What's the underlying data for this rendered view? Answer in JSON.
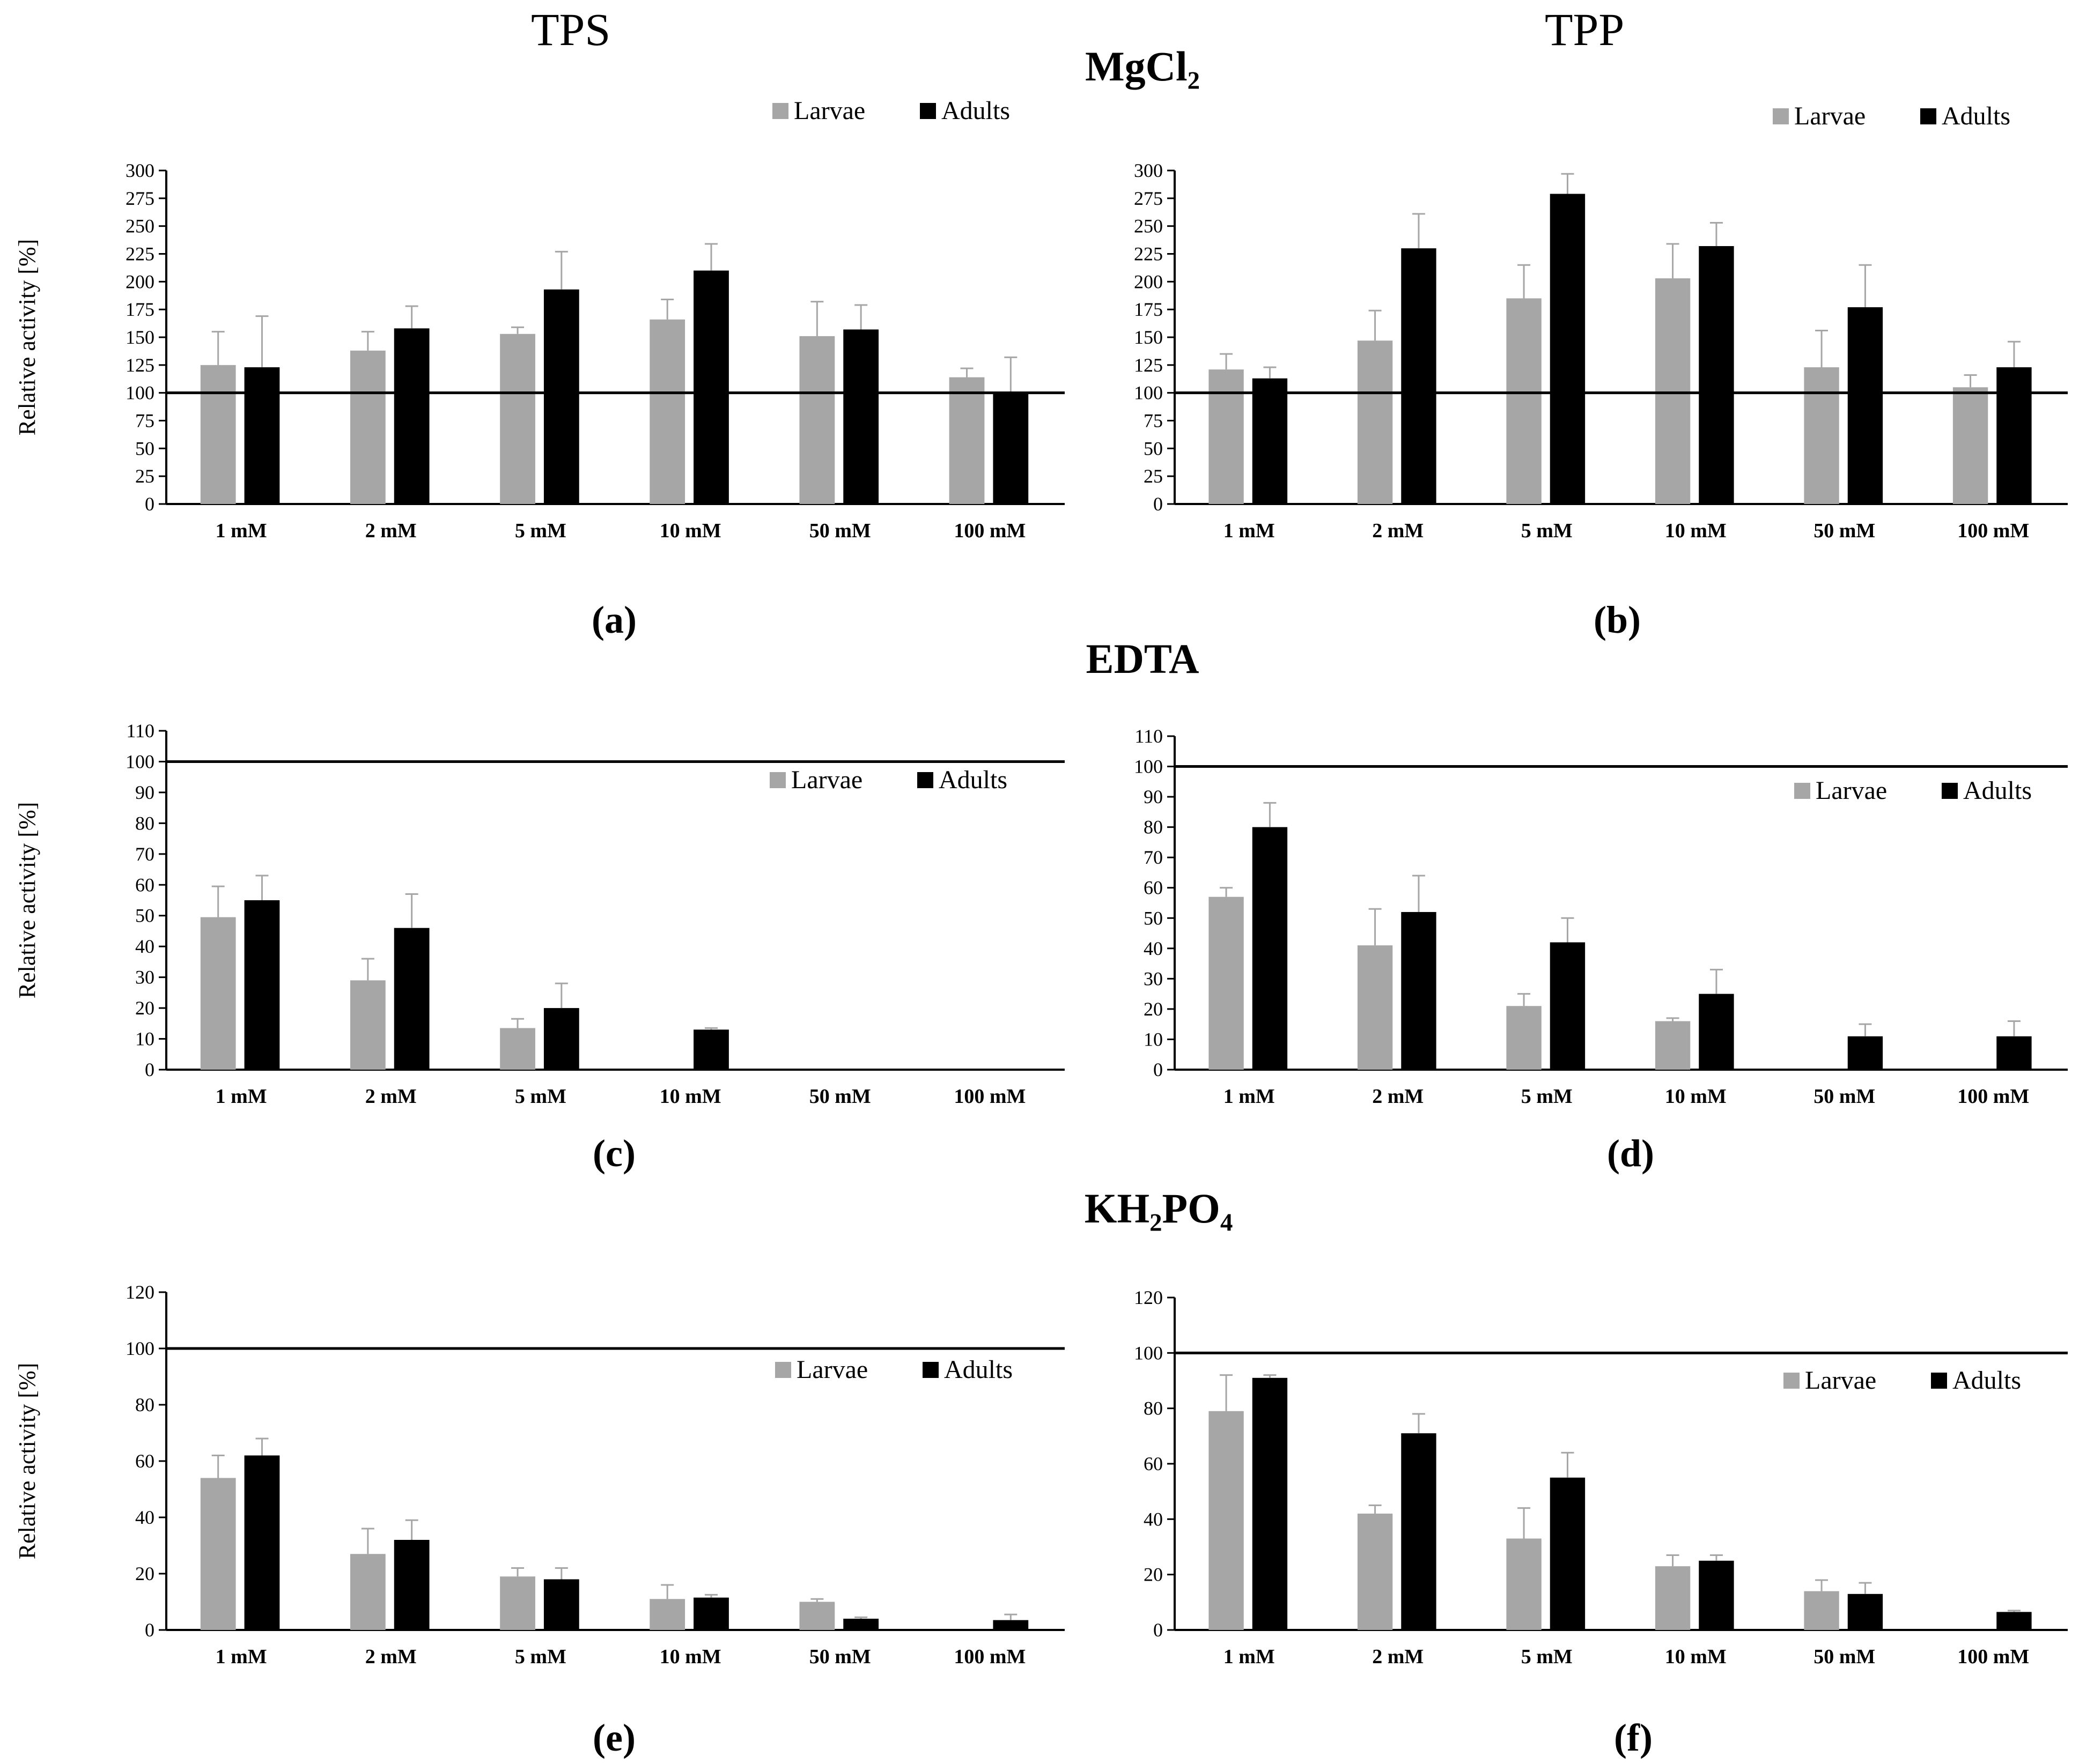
{
  "figure": {
    "col_titles": {
      "left": "TPS",
      "right": "TPP"
    },
    "sections": {
      "mgcl2": "MgCl₂",
      "edta": "EDTA",
      "kh2po4": "KH₂PO₄"
    },
    "panel_labels": {
      "a": "(a)",
      "b": "(b)",
      "c": "(c)",
      "d": "(d)",
      "e": "(e)",
      "f": "(f)"
    }
  },
  "colors": {
    "larvae": "#a6a6a6",
    "adults": "#000000",
    "axis": "#000000",
    "error": "#a6a6a6"
  },
  "chart_data": [
    {
      "id": "a",
      "type": "bar",
      "title": "",
      "ylabel": "Relative activity [%]",
      "ylim": [
        0,
        300
      ],
      "yticks": [
        0,
        25,
        50,
        75,
        100,
        125,
        150,
        175,
        200,
        225,
        250,
        275,
        300
      ],
      "reference_line": 100,
      "legend": "top-right",
      "categories": [
        "1 mM",
        "2 mM",
        "5 mM",
        "10 mM",
        "50 mM",
        "100 mM"
      ],
      "series": [
        {
          "name": "Larvae",
          "values": [
            125,
            138,
            153,
            166,
            151,
            114
          ],
          "errors": [
            30,
            17,
            6,
            18,
            31,
            8
          ]
        },
        {
          "name": "Adults",
          "values": [
            123,
            158,
            193,
            210,
            157,
            101
          ],
          "errors": [
            46,
            20,
            34,
            24,
            22,
            31
          ]
        }
      ]
    },
    {
      "id": "b",
      "type": "bar",
      "title": "",
      "ylabel": "",
      "ylim": [
        0,
        300
      ],
      "yticks": [
        0,
        25,
        50,
        75,
        100,
        125,
        150,
        175,
        200,
        225,
        250,
        275,
        300
      ],
      "reference_line": 100,
      "legend": "top-right",
      "categories": [
        "1 mM",
        "2 mM",
        "5 mM",
        "10 mM",
        "50 mM",
        "100 mM"
      ],
      "series": [
        {
          "name": "Larvae",
          "values": [
            121,
            147,
            185,
            203,
            123,
            105
          ],
          "errors": [
            14,
            27,
            30,
            31,
            33,
            11
          ]
        },
        {
          "name": "Adults",
          "values": [
            113,
            230,
            279,
            232,
            177,
            123
          ],
          "errors": [
            10,
            31,
            18,
            21,
            38,
            23
          ]
        }
      ]
    },
    {
      "id": "c",
      "type": "bar",
      "title": "",
      "ylabel": "Relative activity [%]",
      "ylim": [
        0,
        110
      ],
      "yticks": [
        0,
        10,
        20,
        30,
        40,
        50,
        60,
        70,
        80,
        90,
        100,
        110
      ],
      "reference_line": 100,
      "legend": "top-right",
      "categories": [
        "1 mM",
        "2 mM",
        "5 mM",
        "10 mM",
        "50 mM",
        "100 mM"
      ],
      "series": [
        {
          "name": "Larvae",
          "values": [
            49.5,
            29,
            13.5,
            0,
            0,
            0
          ],
          "errors": [
            10,
            7,
            3,
            0,
            0,
            0
          ]
        },
        {
          "name": "Adults",
          "values": [
            55,
            46,
            20,
            13,
            0,
            0
          ],
          "errors": [
            8,
            11,
            8,
            0.5,
            0,
            0
          ]
        }
      ]
    },
    {
      "id": "d",
      "type": "bar",
      "title": "",
      "ylabel": "",
      "ylim": [
        0,
        110
      ],
      "yticks": [
        0,
        10,
        20,
        30,
        40,
        50,
        60,
        70,
        80,
        90,
        100,
        110
      ],
      "reference_line": 100,
      "legend": "top-right",
      "categories": [
        "1 mM",
        "2 mM",
        "5 mM",
        "10 mM",
        "50 mM",
        "100 mM"
      ],
      "series": [
        {
          "name": "Larvae",
          "values": [
            57,
            41,
            21,
            16,
            0,
            0
          ],
          "errors": [
            3,
            12,
            4,
            1,
            0,
            0
          ]
        },
        {
          "name": "Adults",
          "values": [
            80,
            52,
            42,
            25,
            11,
            11
          ],
          "errors": [
            8,
            12,
            8,
            8,
            4,
            5
          ]
        }
      ]
    },
    {
      "id": "e",
      "type": "bar",
      "title": "",
      "ylabel": "Relative activity [%]",
      "ylim": [
        0,
        120
      ],
      "yticks": [
        0,
        20,
        40,
        60,
        80,
        100,
        120
      ],
      "reference_line": 100,
      "legend": "top-right",
      "categories": [
        "1 mM",
        "2 mM",
        "5 mM",
        "10 mM",
        "50 mM",
        "100 mM"
      ],
      "series": [
        {
          "name": "Larvae",
          "values": [
            54,
            27,
            19,
            11,
            10,
            0
          ],
          "errors": [
            8,
            9,
            3,
            5,
            1,
            0
          ]
        },
        {
          "name": "Adults",
          "values": [
            62,
            32,
            18,
            11.5,
            4,
            3.5
          ],
          "errors": [
            6,
            7,
            4,
            1,
            0.5,
            2
          ]
        }
      ]
    },
    {
      "id": "f",
      "type": "bar",
      "title": "",
      "ylabel": "",
      "ylim": [
        0,
        120
      ],
      "yticks": [
        0,
        20,
        40,
        60,
        80,
        100,
        120
      ],
      "reference_line": 100,
      "legend": "top-right",
      "categories": [
        "1 mM",
        "2 mM",
        "5 mM",
        "10 mM",
        "50 mM",
        "100 mM"
      ],
      "series": [
        {
          "name": "Larvae",
          "values": [
            79,
            42,
            33,
            23,
            14,
            0
          ],
          "errors": [
            13,
            3,
            11,
            4,
            4,
            0
          ]
        },
        {
          "name": "Adults",
          "values": [
            91,
            71,
            55,
            25,
            13,
            6.5
          ],
          "errors": [
            1,
            7,
            9,
            2,
            4,
            0.5
          ]
        }
      ]
    }
  ]
}
